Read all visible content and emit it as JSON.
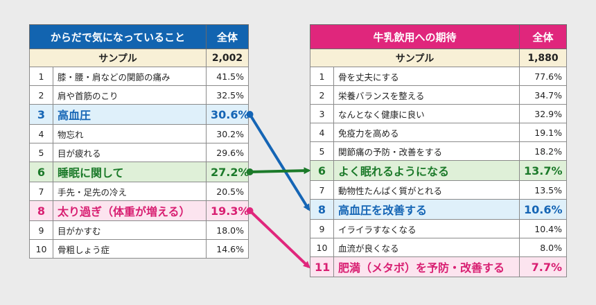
{
  "left": {
    "title": "からだで気になっていること",
    "total_label": "全体",
    "sample_label": "サンプル",
    "sample_value": "2,002",
    "rows": [
      {
        "rank": "1",
        "label": "膝・腰・肩などの関節の痛み",
        "value": "41.5%"
      },
      {
        "rank": "2",
        "label": "肩や首筋のこり",
        "value": "32.5%"
      },
      {
        "rank": "3",
        "label": "高血圧",
        "value": "30.6%"
      },
      {
        "rank": "4",
        "label": "物忘れ",
        "value": "30.2%"
      },
      {
        "rank": "5",
        "label": "目が疲れる",
        "value": "29.6%"
      },
      {
        "rank": "6",
        "label": "睡眠に関して",
        "value": "27.2%"
      },
      {
        "rank": "7",
        "label": "手先・足先の冷え",
        "value": "20.5%"
      },
      {
        "rank": "8",
        "label": "太り過ぎ（体重が増える）",
        "value": "19.3%"
      },
      {
        "rank": "9",
        "label": "目がかすむ",
        "value": "18.0%"
      },
      {
        "rank": "10",
        "label": "骨粗しょう症",
        "value": "14.6%"
      }
    ]
  },
  "right": {
    "title": "牛乳飲用への期待",
    "total_label": "全体",
    "sample_label": "サンプル",
    "sample_value": "1,880",
    "rows": [
      {
        "rank": "1",
        "label": "骨を丈夫にする",
        "value": "77.6%"
      },
      {
        "rank": "2",
        "label": "栄養バランスを整える",
        "value": "34.7%"
      },
      {
        "rank": "3",
        "label": "なんとなく健康に良い",
        "value": "32.9%"
      },
      {
        "rank": "4",
        "label": "免疫力を高める",
        "value": "19.1%"
      },
      {
        "rank": "5",
        "label": "関節痛の予防・改善をする",
        "value": "18.2%"
      },
      {
        "rank": "6",
        "label": "よく眠れるようになる",
        "value": "13.7%"
      },
      {
        "rank": "7",
        "label": "動物性たんぱく質がとれる",
        "value": "13.5%"
      },
      {
        "rank": "8",
        "label": "高血圧を改善する",
        "value": "10.6%"
      },
      {
        "rank": "9",
        "label": "イライラすなくなる",
        "value": "10.4%"
      },
      {
        "rank": "10",
        "label": "血流が良くなる",
        "value": "8.0%"
      },
      {
        "rank": "11",
        "label": "肥満（メタボ）を予防・改善する",
        "value": "7.7%"
      }
    ]
  },
  "colors": {
    "blue": "#1565b5",
    "green": "#1c7a2a",
    "pink": "#e0267c"
  },
  "arrows": [
    {
      "from": "left.rows.2",
      "to": "right.rows.7",
      "color": "blue"
    },
    {
      "from": "left.rows.5",
      "to": "right.rows.5",
      "color": "green"
    },
    {
      "from": "left.rows.7",
      "to": "right.rows.10",
      "color": "pink"
    }
  ]
}
